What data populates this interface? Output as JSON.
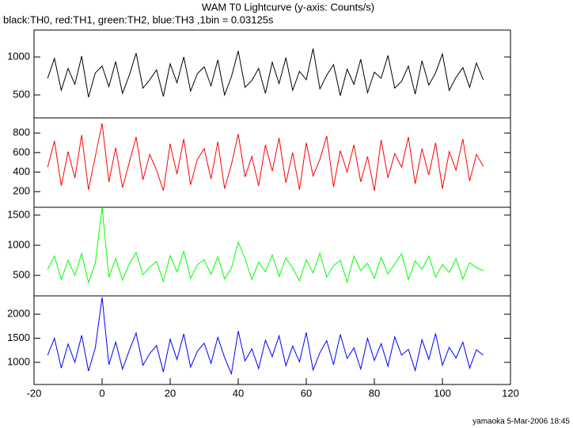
{
  "chart_data": [
    {
      "type": "line",
      "title": "WAM T0 Lightcurve (y-axis: Counts/s)",
      "subtitle": "black:TH0, red:TH1, green:TH2, blue:TH3 ,1bin = 0.03125s",
      "color": "#000000",
      "xlim": [
        -20,
        120
      ],
      "ylim": [
        198,
        1354
      ],
      "yticks": [
        500,
        1000
      ],
      "x": [
        -16,
        -14,
        -12,
        -10,
        -8,
        -6,
        -4,
        -2,
        0,
        2,
        4,
        6,
        8,
        10,
        12,
        14,
        16,
        18,
        20,
        22,
        24,
        26,
        28,
        30,
        32,
        34,
        36,
        38,
        40,
        42,
        44,
        46,
        48,
        50,
        52,
        54,
        56,
        58,
        60,
        62,
        64,
        66,
        68,
        70,
        72,
        74,
        76,
        78,
        80,
        82,
        84,
        86,
        88,
        90,
        92,
        94,
        96,
        98,
        100,
        102,
        104,
        106,
        108,
        110,
        112
      ],
      "values": [
        720,
        980,
        560,
        850,
        640,
        1010,
        470,
        790,
        880,
        610,
        940,
        520,
        760,
        1050,
        590,
        700,
        830,
        480,
        910,
        660,
        1000,
        550,
        780,
        870,
        620,
        960,
        500,
        740,
        1080,
        600,
        690,
        850,
        520,
        930,
        650,
        990,
        560,
        810,
        700,
        1110,
        580,
        760,
        900,
        490,
        840,
        640,
        970,
        530,
        800,
        720,
        1020,
        590,
        680,
        880,
        510,
        950,
        630,
        790,
        1040,
        560,
        730,
        860,
        600,
        920,
        700
      ]
    },
    {
      "type": "line",
      "color": "#ff0000",
      "xlim": [
        -20,
        120
      ],
      "ylim": [
        40,
        955
      ],
      "yticks": [
        200,
        400,
        600,
        800
      ],
      "x": [
        -16,
        -14,
        -12,
        -10,
        -8,
        -6,
        -4,
        -2,
        0,
        2,
        4,
        6,
        8,
        10,
        12,
        14,
        16,
        18,
        20,
        22,
        24,
        26,
        28,
        30,
        32,
        34,
        36,
        38,
        40,
        42,
        44,
        46,
        48,
        50,
        52,
        54,
        56,
        58,
        60,
        62,
        64,
        66,
        68,
        70,
        72,
        74,
        76,
        78,
        80,
        82,
        84,
        86,
        88,
        90,
        92,
        94,
        96,
        98,
        100,
        102,
        104,
        106,
        108,
        110,
        112
      ],
      "values": [
        450,
        720,
        260,
        610,
        340,
        780,
        220,
        560,
        900,
        300,
        650,
        240,
        500,
        760,
        320,
        580,
        420,
        210,
        690,
        380,
        740,
        270,
        530,
        640,
        330,
        710,
        230,
        480,
        790,
        350,
        560,
        260,
        680,
        410,
        750,
        290,
        600,
        220,
        700,
        360,
        530,
        770,
        250,
        620,
        400,
        680,
        300,
        560,
        210,
        730,
        340,
        590,
        450,
        760,
        280,
        640,
        370,
        700,
        230,
        610,
        420,
        740,
        310,
        580,
        460
      ]
    },
    {
      "type": "line",
      "color": "#00ff00",
      "xlim": [
        -20,
        120
      ],
      "ylim": [
        160,
        1630
      ],
      "yticks": [
        500,
        1000,
        1500
      ],
      "x": [
        -16,
        -14,
        -12,
        -10,
        -8,
        -6,
        -4,
        -2,
        0,
        2,
        4,
        6,
        8,
        10,
        12,
        14,
        16,
        18,
        20,
        22,
        24,
        26,
        28,
        30,
        32,
        34,
        36,
        38,
        40,
        42,
        44,
        46,
        48,
        50,
        52,
        54,
        56,
        58,
        60,
        62,
        64,
        66,
        68,
        70,
        72,
        74,
        76,
        78,
        80,
        82,
        84,
        86,
        88,
        90,
        92,
        94,
        96,
        98,
        100,
        102,
        104,
        106,
        108,
        110,
        112
      ],
      "values": [
        600,
        820,
        430,
        750,
        500,
        860,
        380,
        700,
        1630,
        470,
        780,
        420,
        690,
        880,
        510,
        640,
        730,
        400,
        830,
        560,
        900,
        450,
        680,
        760,
        520,
        810,
        440,
        620,
        1050,
        780,
        430,
        720,
        560,
        840,
        480,
        790,
        620,
        410,
        760,
        540,
        870,
        470,
        660,
        750,
        390,
        820,
        580,
        700,
        450,
        800,
        520,
        690,
        860,
        430,
        740,
        600,
        820,
        470,
        680,
        550,
        780,
        440,
        710,
        630,
        580
      ]
    },
    {
      "type": "line",
      "color": "#0000ff",
      "xlim": [
        -20,
        120
      ],
      "ylim": [
        540,
        2380
      ],
      "yticks": [
        1000,
        1500,
        2000
      ],
      "xticks": [
        -20,
        0,
        20,
        40,
        60,
        80,
        100,
        120
      ],
      "x": [
        -16,
        -14,
        -12,
        -10,
        -8,
        -6,
        -4,
        -2,
        0,
        2,
        4,
        6,
        8,
        10,
        12,
        14,
        16,
        18,
        20,
        22,
        24,
        26,
        28,
        30,
        32,
        34,
        36,
        38,
        40,
        42,
        44,
        46,
        48,
        50,
        52,
        54,
        56,
        58,
        60,
        62,
        64,
        66,
        68,
        70,
        72,
        74,
        76,
        78,
        80,
        82,
        84,
        86,
        88,
        90,
        92,
        94,
        96,
        98,
        100,
        102,
        104,
        106,
        108,
        110,
        112
      ],
      "values": [
        1150,
        1500,
        880,
        1380,
        1000,
        1560,
        820,
        1300,
        2350,
        950,
        1420,
        860,
        1250,
        1610,
        940,
        1180,
        1350,
        800,
        1480,
        1060,
        1590,
        900,
        1230,
        1400,
        980,
        1520,
        1100,
        760,
        1650,
        1030,
        1280,
        870,
        1460,
        1120,
        1550,
        930,
        1340,
        1010,
        1620,
        840,
        1200,
        1450,
        950,
        1580,
        1080,
        1300,
        860,
        1500,
        1040,
        1390,
        920,
        1530,
        1150,
        1270,
        830,
        1470,
        1060,
        1600,
        940,
        1310,
        1090,
        1420,
        880,
        1260,
        1150
      ],
      "footer": "yamaoka  5-Mar-2006 18:45"
    }
  ]
}
